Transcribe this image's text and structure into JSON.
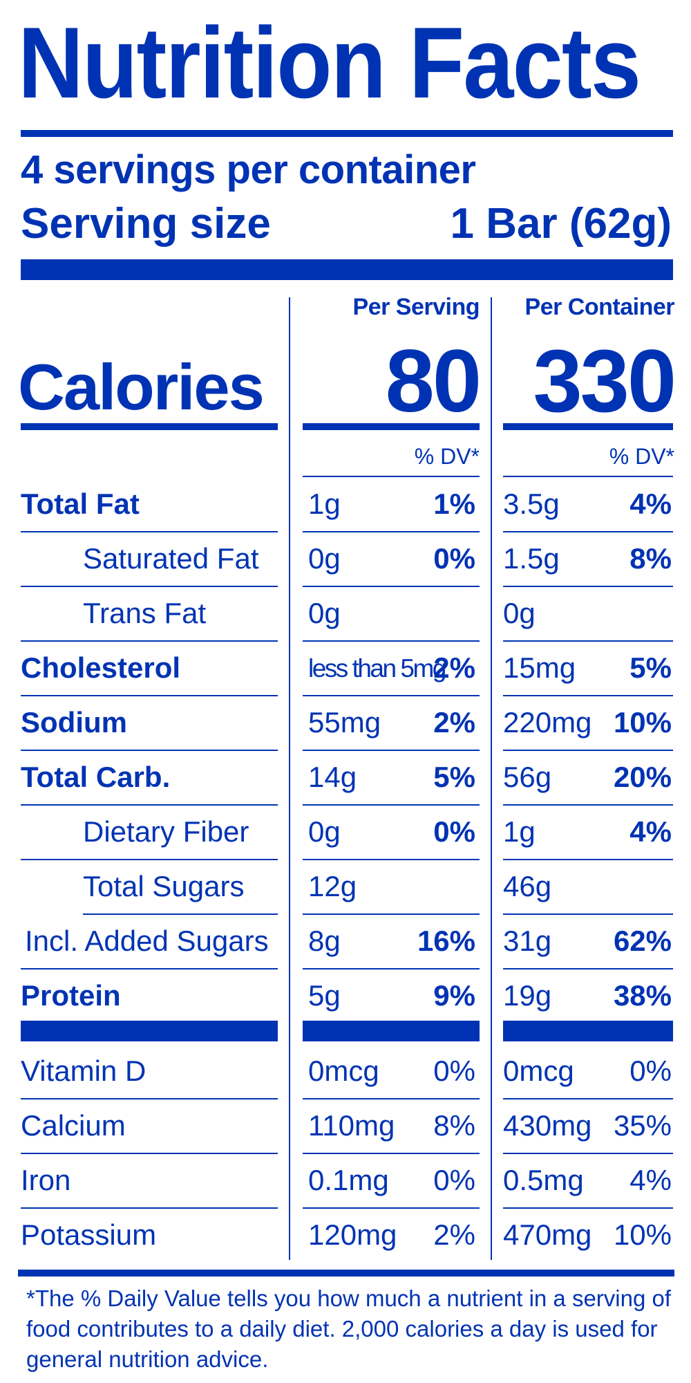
{
  "colors": {
    "ink": "#0033b3",
    "background": "#ffffff"
  },
  "title": "Nutrition Facts",
  "servings_per_container": "4 servings per container",
  "serving_size": {
    "label": "Serving size",
    "value": "1 Bar (62g)"
  },
  "columns": {
    "per_serving": "Per Serving",
    "per_container": "Per Container",
    "dv_header": "% DV*"
  },
  "calories": {
    "label": "Calories",
    "per_serving": "80",
    "per_container": "330"
  },
  "nutrients": [
    {
      "name": "Total Fat",
      "bold": true,
      "indent": false,
      "serving": {
        "amount": "1g",
        "dv": "1%"
      },
      "container": {
        "amount": "3.5g",
        "dv": "4%"
      }
    },
    {
      "name": "Saturated Fat",
      "bold": false,
      "indent": true,
      "serving": {
        "amount": "0g",
        "dv": "0%"
      },
      "container": {
        "amount": "1.5g",
        "dv": "8%"
      }
    },
    {
      "name": "Trans Fat",
      "bold": false,
      "indent": true,
      "serving": {
        "amount": "0g",
        "dv": ""
      },
      "container": {
        "amount": "0g",
        "dv": ""
      }
    },
    {
      "name": "Cholesterol",
      "bold": true,
      "indent": false,
      "serving": {
        "amount": "less than 5mg",
        "dv": "2%"
      },
      "container": {
        "amount": "15mg",
        "dv": "5%"
      }
    },
    {
      "name": "Sodium",
      "bold": true,
      "indent": false,
      "serving": {
        "amount": "55mg",
        "dv": "2%"
      },
      "container": {
        "amount": "220mg",
        "dv": "10%"
      }
    },
    {
      "name": "Total Carb.",
      "bold": true,
      "indent": false,
      "serving": {
        "amount": "14g",
        "dv": "5%"
      },
      "container": {
        "amount": "56g",
        "dv": "20%"
      }
    },
    {
      "name": "Dietary Fiber",
      "bold": false,
      "indent": true,
      "serving": {
        "amount": "0g",
        "dv": "0%"
      },
      "container": {
        "amount": "1g",
        "dv": "4%"
      }
    },
    {
      "name": "Total Sugars",
      "bold": false,
      "indent": true,
      "serving": {
        "amount": "12g",
        "dv": ""
      },
      "container": {
        "amount": "46g",
        "dv": ""
      }
    },
    {
      "name": "Incl. Added Sugars",
      "bold": false,
      "indent": false,
      "serving": {
        "amount": "8g",
        "dv": "16%"
      },
      "container": {
        "amount": "31g",
        "dv": "62%"
      }
    },
    {
      "name": "Protein",
      "bold": true,
      "indent": false,
      "serving": {
        "amount": "5g",
        "dv": "9%"
      },
      "container": {
        "amount": "19g",
        "dv": "38%"
      }
    }
  ],
  "vitamins": [
    {
      "name": "Vitamin D",
      "serving": {
        "amount": "0mcg",
        "dv": "0%"
      },
      "container": {
        "amount": "0mcg",
        "dv": "0%"
      }
    },
    {
      "name": "Calcium",
      "serving": {
        "amount": "110mg",
        "dv": "8%"
      },
      "container": {
        "amount": "430mg",
        "dv": "35%"
      }
    },
    {
      "name": "Iron",
      "serving": {
        "amount": "0.1mg",
        "dv": "0%"
      },
      "container": {
        "amount": "0.5mg",
        "dv": "4%"
      }
    },
    {
      "name": "Potassium",
      "serving": {
        "amount": "120mg",
        "dv": "2%"
      },
      "container": {
        "amount": "470mg",
        "dv": "10%"
      }
    }
  ],
  "footnote": "*The % Daily Value tells you how much a nutrient in a serving of food contributes to a daily diet. 2,000 calories a day is used for general nutrition advice."
}
